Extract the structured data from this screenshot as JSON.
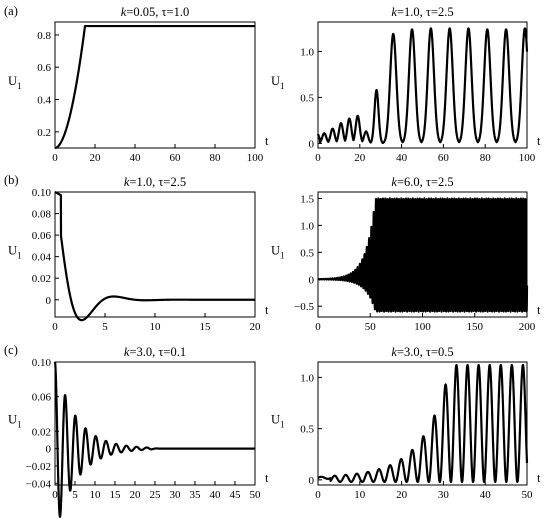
{
  "row_labels": [
    "(a)",
    "(b)",
    "(c)"
  ],
  "chart_data": [
    {
      "type": "line",
      "title_param_k": "k",
      "title_value": "=0.05, τ=1.0",
      "xlabel": "t",
      "ylabel": "U",
      "ylabel_subscript": "1",
      "xlim": [
        0,
        100
      ],
      "ylim": [
        0.1,
        0.88
      ],
      "xticks": [
        0,
        20,
        40,
        60,
        80,
        100
      ],
      "xtick_labels": [
        "0",
        "20",
        "40",
        "60",
        "80",
        "100"
      ],
      "yticks": [
        0.2,
        0.4,
        0.6,
        0.8
      ],
      "ytick_labels": [
        "0.2",
        "0.4",
        "0.6",
        "0.8"
      ],
      "series": [
        {
          "model": "saturating",
          "start": 0.1,
          "plateau": 0.855,
          "rise_end": 15
        }
      ]
    },
    {
      "type": "line",
      "title_param_k": "k",
      "title_value": "=1.0, τ=2.5",
      "xlabel": "t",
      "ylabel": "U",
      "ylabel_subscript": "1",
      "xlim": [
        0,
        100
      ],
      "ylim": [
        -0.05,
        1.32
      ],
      "xticks": [
        0,
        20,
        40,
        60,
        80,
        100
      ],
      "xtick_labels": [
        "0",
        "20",
        "40",
        "60",
        "80",
        "100"
      ],
      "yticks": [
        0,
        0.5,
        1.0
      ],
      "ytick_labels": [
        "0",
        "0.5",
        "1.0"
      ],
      "series": [
        {
          "model": "pulse-train",
          "pulse_peaks_x": [
            3,
            7,
            11,
            15,
            19,
            23,
            28,
            36,
            45,
            54,
            63,
            72,
            81,
            90,
            99
          ],
          "pulse_peaks_y": [
            0.11,
            0.16,
            0.22,
            0.27,
            0.3,
            0.13,
            0.58,
            1.19,
            1.24,
            1.25,
            1.25,
            1.25,
            1.24,
            1.24,
            1.25
          ],
          "floor": 0.0
        }
      ]
    },
    {
      "type": "line",
      "title_param_k": "k",
      "title_value": "=1.0, τ=2.5",
      "xlabel": "t",
      "ylabel": "U",
      "ylabel_subscript": "1",
      "xlim": [
        0,
        20
      ],
      "ylim": [
        -0.016,
        0.1
      ],
      "xticks": [
        0,
        5,
        10,
        15,
        20
      ],
      "xtick_labels": [
        "0",
        "5",
        "10",
        "15",
        "20"
      ],
      "yticks": [
        0,
        0.02,
        0.04,
        0.06,
        0.08,
        0.1
      ],
      "ytick_labels": [
        "0",
        "0.02",
        "0.04",
        "0.06",
        "0.08",
        "0.10"
      ],
      "series": [
        {
          "model": "damped",
          "start": 0.1,
          "amplitude": 0.1,
          "decay": 0.57,
          "period": 5.0,
          "phase_shift": 0.0
        }
      ]
    },
    {
      "type": "line",
      "title_param_k": "k",
      "title_value": "=6.0, τ=2.5",
      "xlabel": "t",
      "ylabel": "U",
      "ylabel_subscript": "1",
      "xlim": [
        0,
        200
      ],
      "ylim": [
        -0.7,
        1.62
      ],
      "xticks": [
        0,
        50,
        100,
        150,
        200
      ],
      "xtick_labels": [
        "0",
        "50",
        "100",
        "150",
        "200"
      ],
      "yticks": [
        -0.5,
        0,
        0.5,
        1.0,
        1.5
      ],
      "ytick_labels": [
        "−0.5",
        "0",
        "0.5",
        "1.0",
        "1.5"
      ],
      "series": [
        {
          "model": "growing-oscillation",
          "period": 2.2,
          "growth_until": 55,
          "max_high": 1.5,
          "max_low": -0.6
        }
      ]
    },
    {
      "type": "line",
      "title_param_k": "k",
      "title_value": "=3.0, τ=0.1",
      "xlabel": "t",
      "ylabel": "U",
      "ylabel_subscript": "1",
      "xlim": [
        0,
        50
      ],
      "ylim": [
        -0.042,
        0.1
      ],
      "xticks": [
        0,
        5,
        10,
        15,
        20,
        25,
        30,
        35,
        40,
        45,
        50
      ],
      "xtick_labels": [
        "0",
        "5",
        "10",
        "15",
        "20",
        "25",
        "30",
        "35",
        "40",
        "45",
        "50"
      ],
      "yticks": [
        -0.04,
        -0.02,
        0,
        0.02,
        0.06,
        0.1
      ],
      "ytick_labels": [
        "−0.04",
        "−0.02",
        "0",
        "0.02",
        "0.06",
        "0.10"
      ],
      "series": [
        {
          "model": "damped-fast",
          "start": 0.1,
          "amplitude": 0.1,
          "period": 2.5,
          "decay": 0.19,
          "settle_at": 24
        }
      ]
    },
    {
      "type": "line",
      "title_param_k": "k",
      "title_value": "=3.0, τ=0.5",
      "xlabel": "t",
      "ylabel": "U",
      "ylabel_subscript": "1",
      "xlim": [
        0,
        50
      ],
      "ylim": [
        -0.05,
        1.15
      ],
      "xticks": [
        0,
        10,
        20,
        30,
        40,
        50
      ],
      "xtick_labels": [
        "0",
        "10",
        "20",
        "30",
        "40",
        "50"
      ],
      "yticks": [
        0,
        0.5,
        1.0
      ],
      "ytick_labels": [
        "0",
        "0.5",
        "1.0"
      ],
      "series": [
        {
          "model": "growing-offset",
          "period": 2.65,
          "growth_until": 32,
          "max_high": 1.12,
          "low": -0.02
        }
      ]
    }
  ]
}
